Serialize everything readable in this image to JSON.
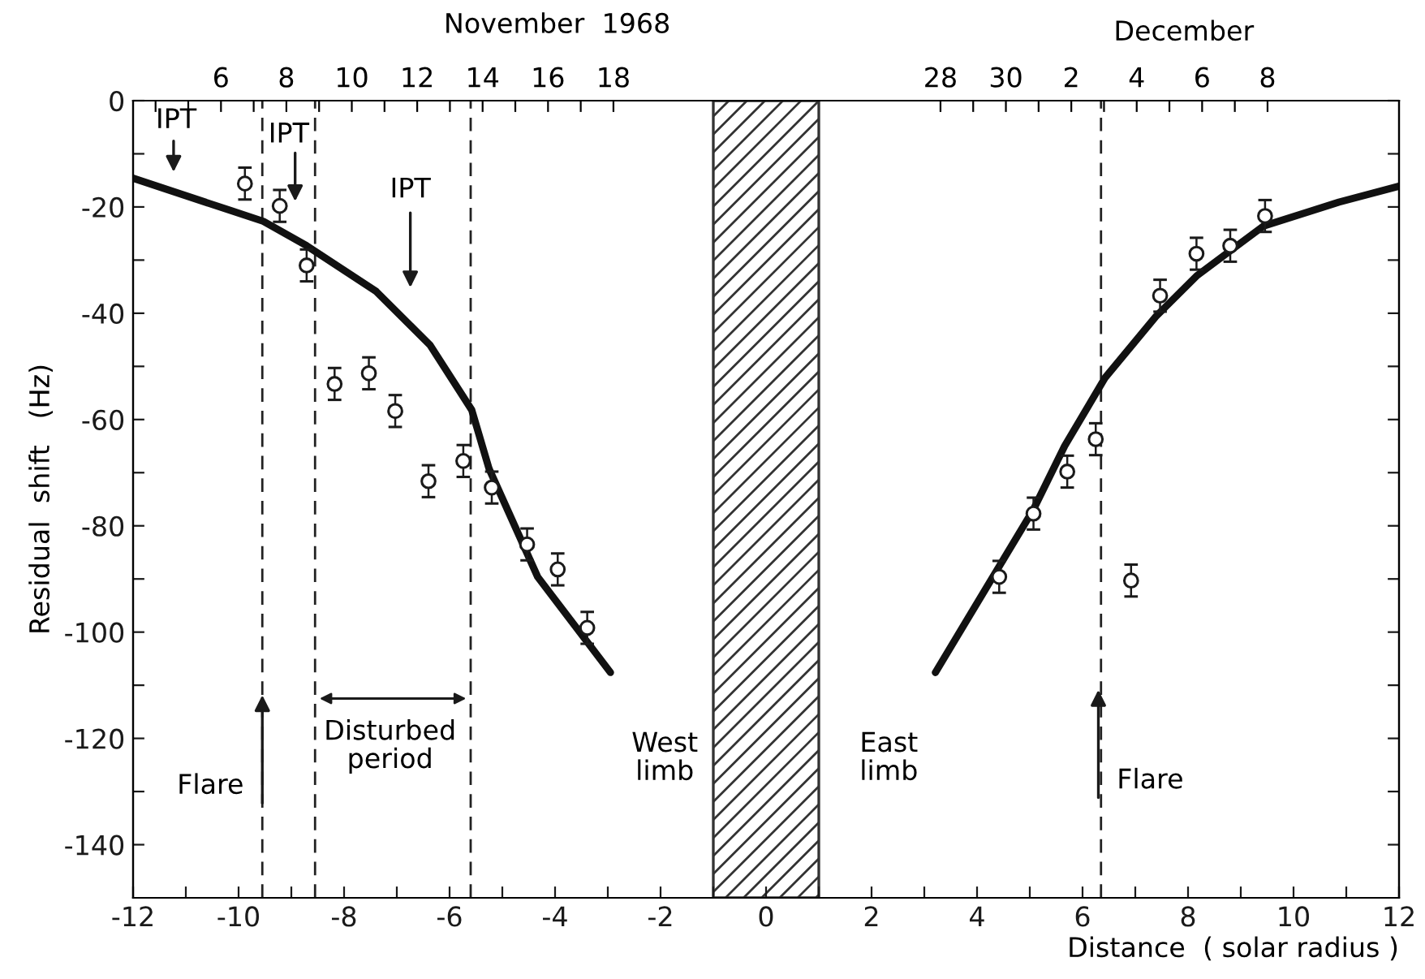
{
  "chart_data": {
    "type": "scatter",
    "xlabel": "Distance  ( solar radius )",
    "ylabel": "Residual  shift   (Hz)",
    "x2label": "November  1968",
    "xlim": [
      -12,
      12
    ],
    "ylim": [
      -150,
      0
    ],
    "x2lim": [
      "1968-11-03T07:30",
      "1968-12-12T00:30"
    ],
    "xticks": [
      -12,
      {
        "value": -11,
        "label": null
      },
      -10,
      {
        "value": -9,
        "label": null
      },
      -8,
      {
        "value": -7,
        "label": null
      },
      -6,
      {
        "value": -5,
        "label": null
      },
      -4,
      {
        "value": -3,
        "label": null
      },
      -2,
      {
        "value": -1,
        "label": null
      },
      0,
      {
        "value": 1,
        "label": null
      },
      2,
      {
        "value": 3,
        "label": null
      },
      4,
      {
        "value": 5,
        "label": null
      },
      6,
      {
        "value": 7,
        "label": null
      },
      8,
      {
        "value": 9,
        "label": null
      },
      10,
      {
        "value": 11,
        "label": null
      },
      12
    ],
    "yticks": [
      0,
      {
        "value": -10,
        "label": null
      },
      -20,
      {
        "value": -30,
        "label": null
      },
      -40,
      {
        "value": -50,
        "label": null
      },
      -60,
      {
        "value": -70,
        "label": null
      },
      -80,
      {
        "value": -90,
        "label": null
      },
      -100,
      {
        "value": -110,
        "label": null
      },
      -120,
      {
        "value": -130,
        "label": null
      },
      -140
    ],
    "x2ticks": [
      {
        "value": "1968-11-04",
        "label": null
      },
      {
        "value": "1968-11-05",
        "label": null
      },
      {
        "value": "1968-11-06",
        "label": "6"
      },
      {
        "value": "1968-11-07",
        "label": null
      },
      {
        "value": "1968-11-08",
        "label": "8"
      },
      {
        "value": "1968-11-09",
        "label": null
      },
      {
        "value": "1968-11-10",
        "label": "10"
      },
      {
        "value": "1968-11-11",
        "label": null
      },
      {
        "value": "1968-11-12",
        "label": "12"
      },
      {
        "value": "1968-11-13",
        "label": null
      },
      {
        "value": "1968-11-14",
        "label": "14"
      },
      {
        "value": "1968-11-15",
        "label": null
      },
      {
        "value": "1968-11-16",
        "label": "16"
      },
      {
        "value": "1968-11-17",
        "label": null
      },
      {
        "value": "1968-11-18",
        "label": "18"
      },
      {
        "value": "1968-11-28",
        "label": "28"
      },
      {
        "value": "1968-11-29",
        "label": null
      },
      {
        "value": "1968-11-30",
        "label": "30"
      },
      {
        "value": "1968-12-01",
        "label": null
      },
      {
        "value": "1968-12-02",
        "label": "2"
      },
      {
        "value": "1968-12-03",
        "label": null
      },
      {
        "value": "1968-12-04",
        "label": "4"
      },
      {
        "value": "1968-12-05",
        "label": null
      },
      {
        "value": "1968-12-06",
        "label": "6"
      },
      {
        "value": "1968-12-07",
        "label": null
      },
      {
        "value": "1968-12-08",
        "label": "8"
      }
    ],
    "grid": false,
    "legend": false,
    "series": [
      {
        "color": "#1a1a1a",
        "marker": "circle",
        "x": [
          -9.88,
          -9.22,
          -8.71,
          -8.18,
          -7.53,
          -7.03,
          -6.4,
          -5.74,
          -5.2,
          -4.53,
          -3.95,
          -3.39,
          4.42,
          5.07,
          5.71,
          6.25,
          6.92,
          7.47,
          8.16,
          8.8,
          9.46
        ],
        "values": [
          -15.6,
          -19.8,
          -31,
          -53.3,
          -51.3,
          -58.4,
          -71.6,
          -67.8,
          -72.8,
          -83.5,
          -88.2,
          -99.2,
          -89.6,
          -77.7,
          -69.8,
          -63.7,
          -90.3,
          -36.7,
          -28.8,
          -27.3,
          -21.7
        ],
        "errors": [
          3,
          3,
          3,
          3,
          3,
          3,
          3,
          3,
          3,
          3,
          3,
          3,
          3,
          3,
          3,
          3,
          3,
          3,
          3,
          3,
          3
        ]
      },
      {
        "type": "line",
        "color": "#111111",
        "line_style": "solid",
        "marker": "none",
        "x": [
          -12,
          -9.53,
          -8.71,
          -7.39,
          -6.37,
          -5.58,
          -5.25,
          -4.33,
          -2.95
        ],
        "values": [
          -14.6,
          -22.7,
          -27.3,
          -35.9,
          -46,
          -58.2,
          -69.3,
          -89.6,
          -107.6
        ]
      },
      {
        "type": "line",
        "color": "#111111",
        "line_style": "solid",
        "marker": "none",
        "x": [
          3.21,
          5.07,
          5.66,
          6.43,
          7.39,
          8.16,
          9.43,
          10.86,
          12
        ],
        "values": [
          -107.6,
          -76.9,
          -65,
          -52.1,
          -40.6,
          -33,
          -23.6,
          -19.1,
          -16.1
        ]
      }
    ],
    "ref_lines": [
      {
        "axis": "x",
        "value": -9.55,
        "line_style": "dashed",
        "color": "#222222"
      },
      {
        "axis": "x",
        "value": -8.55,
        "line_style": "dashed",
        "color": "#222222"
      },
      {
        "axis": "x",
        "value": -5.6,
        "line_style": "dashed",
        "color": "#222222"
      },
      {
        "axis": "x",
        "value": 6.35,
        "line_style": "dashed",
        "color": "#222222"
      }
    ],
    "bands": [
      {
        "axis": "x",
        "from": -1,
        "to": 1,
        "color": "#333333"
      }
    ],
    "annotations": [
      "IPT",
      "IPT",
      "IPT",
      {
        "text": "Flare",
        "x": -9.55,
        "y": -111
      },
      {
        "text": "Flare",
        "x": 6.3,
        "y": -110
      },
      "Disturbed\nperiod",
      "West\nlimb",
      "East\nlimb",
      "December"
    ]
  }
}
